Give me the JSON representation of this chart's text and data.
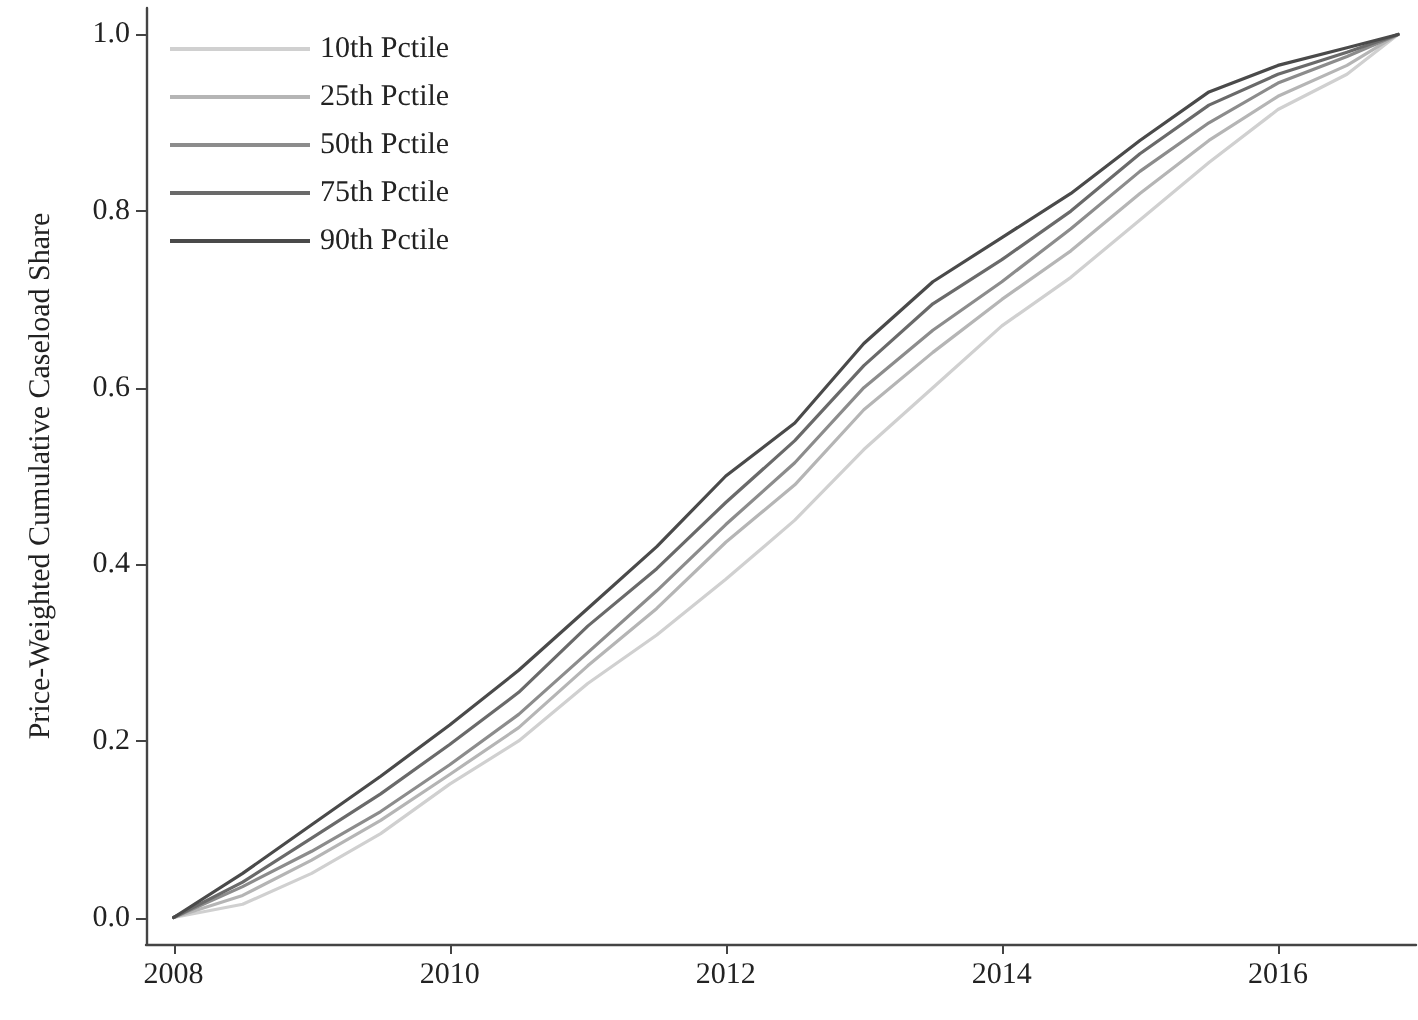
{
  "chart_data": {
    "type": "line",
    "ylabel": "Price-Weighted Cumulative Caseload Share",
    "x": [
      2008,
      2008.5,
      2009,
      2009.5,
      2010,
      2010.5,
      2011,
      2011.5,
      2012,
      2012.5,
      2013,
      2013.5,
      2014,
      2014.5,
      2015,
      2015.5,
      2016,
      2016.5,
      2016.87
    ],
    "series": [
      {
        "name": "10th Pctile",
        "color": "#d0d0d0",
        "values": [
          0,
          0.015,
          0.05,
          0.095,
          0.151,
          0.2,
          0.265,
          0.32,
          0.383,
          0.45,
          0.53,
          0.6,
          0.67,
          0.725,
          0.79,
          0.855,
          0.915,
          0.955,
          1.0
        ]
      },
      {
        "name": "25th Pctile",
        "color": "#b5b5b5",
        "values": [
          0,
          0.025,
          0.065,
          0.11,
          0.162,
          0.215,
          0.285,
          0.35,
          0.425,
          0.49,
          0.575,
          0.64,
          0.7,
          0.755,
          0.82,
          0.88,
          0.93,
          0.965,
          1.0
        ]
      },
      {
        "name": "50th Pctile",
        "color": "#8c8c8c",
        "values": [
          0,
          0.035,
          0.075,
          0.12,
          0.173,
          0.23,
          0.3,
          0.37,
          0.445,
          0.515,
          0.6,
          0.665,
          0.72,
          0.78,
          0.845,
          0.9,
          0.945,
          0.975,
          1.0
        ]
      },
      {
        "name": "75th Pctile",
        "color": "#6a6a6a",
        "values": [
          0,
          0.04,
          0.09,
          0.14,
          0.196,
          0.255,
          0.33,
          0.395,
          0.47,
          0.54,
          0.625,
          0.695,
          0.745,
          0.8,
          0.865,
          0.92,
          0.955,
          0.98,
          1.0
        ]
      },
      {
        "name": "90th Pctile",
        "color": "#4a4a4a",
        "values": [
          0,
          0.05,
          0.105,
          0.16,
          0.218,
          0.28,
          0.35,
          0.42,
          0.5,
          0.56,
          0.65,
          0.72,
          0.77,
          0.82,
          0.88,
          0.935,
          0.965,
          0.985,
          1.0
        ]
      }
    ],
    "xlim": [
      2007.8,
      2017
    ],
    "xticks": [
      2008,
      2010,
      2012,
      2014,
      2016
    ],
    "ylim": [
      -0.03,
      1.03
    ],
    "yticks": [
      {
        "value": 0,
        "label": "0.0"
      },
      {
        "value": 0.2,
        "label": "0.2"
      },
      {
        "value": 0.4,
        "label": "0.4"
      },
      {
        "value": 0.6,
        "label": "0.6"
      },
      {
        "value": 0.8,
        "label": "0.8"
      },
      {
        "value": 1,
        "label": "1.0"
      }
    ],
    "grid": false,
    "legend": "top left",
    "marker": "none",
    "line_style": "solid"
  }
}
